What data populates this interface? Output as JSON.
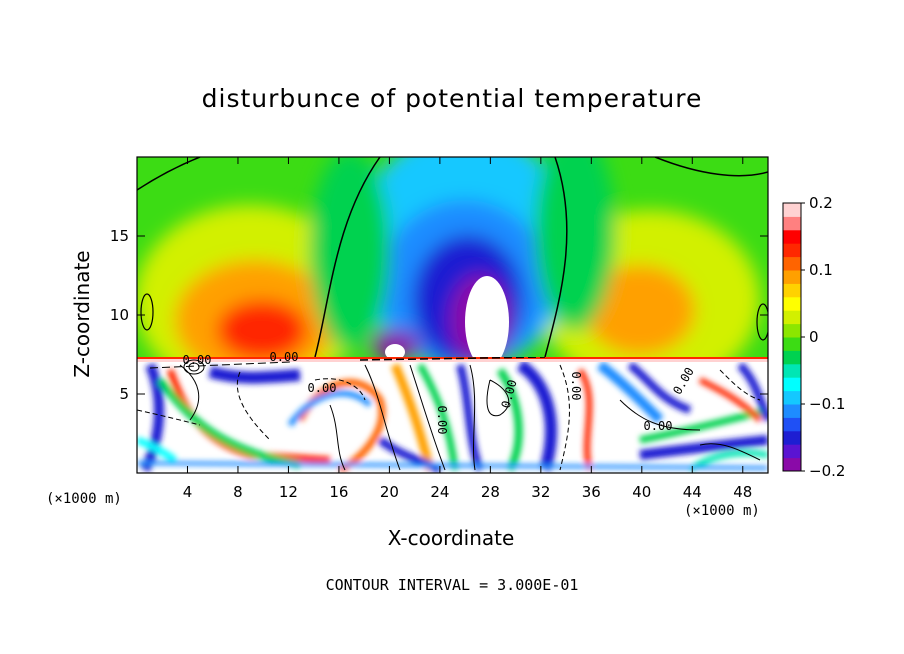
{
  "chart_data": {
    "type": "heatmap",
    "title": "disturbunce of potential temperature",
    "xlabel": "X-coordinate",
    "ylabel": "Z-coordinate",
    "x_unit": "(×1000 m)",
    "y_unit": "(×1000 m)",
    "x_ticks": [
      4,
      8,
      12,
      16,
      20,
      24,
      28,
      32,
      36,
      40,
      44,
      48
    ],
    "y_ticks": [
      5,
      10,
      15
    ],
    "xlim": [
      0,
      50
    ],
    "ylim": [
      0,
      20
    ],
    "colorbar": {
      "min": -0.2,
      "max": 0.2,
      "tick_values": [
        0.2,
        0.1,
        0,
        -0.1,
        -0.2
      ],
      "tick_labels": [
        "0.2",
        "0.1",
        "0",
        "−0.1",
        "−0.2"
      ],
      "colors": [
        "#8a0aa8",
        "#5a14d2",
        "#1e1ed2",
        "#1f50f5",
        "#1e8cff",
        "#14c8ff",
        "#00ffff",
        "#00e6b4",
        "#00d250",
        "#3cdc14",
        "#8ce600",
        "#d2f000",
        "#ffff00",
        "#ffd200",
        "#ffa000",
        "#ff6400",
        "#ff2800",
        "#ff0000",
        "#ff8080",
        "#ffd2d2"
      ]
    },
    "contour_labels": [
      "0.00",
      "0.00",
      "0.00",
      "0.00",
      "0.00",
      "0.00",
      "0.00",
      "0.00"
    ],
    "annotation": "CONTOUR INTERVAL = 3.000E-01"
  }
}
